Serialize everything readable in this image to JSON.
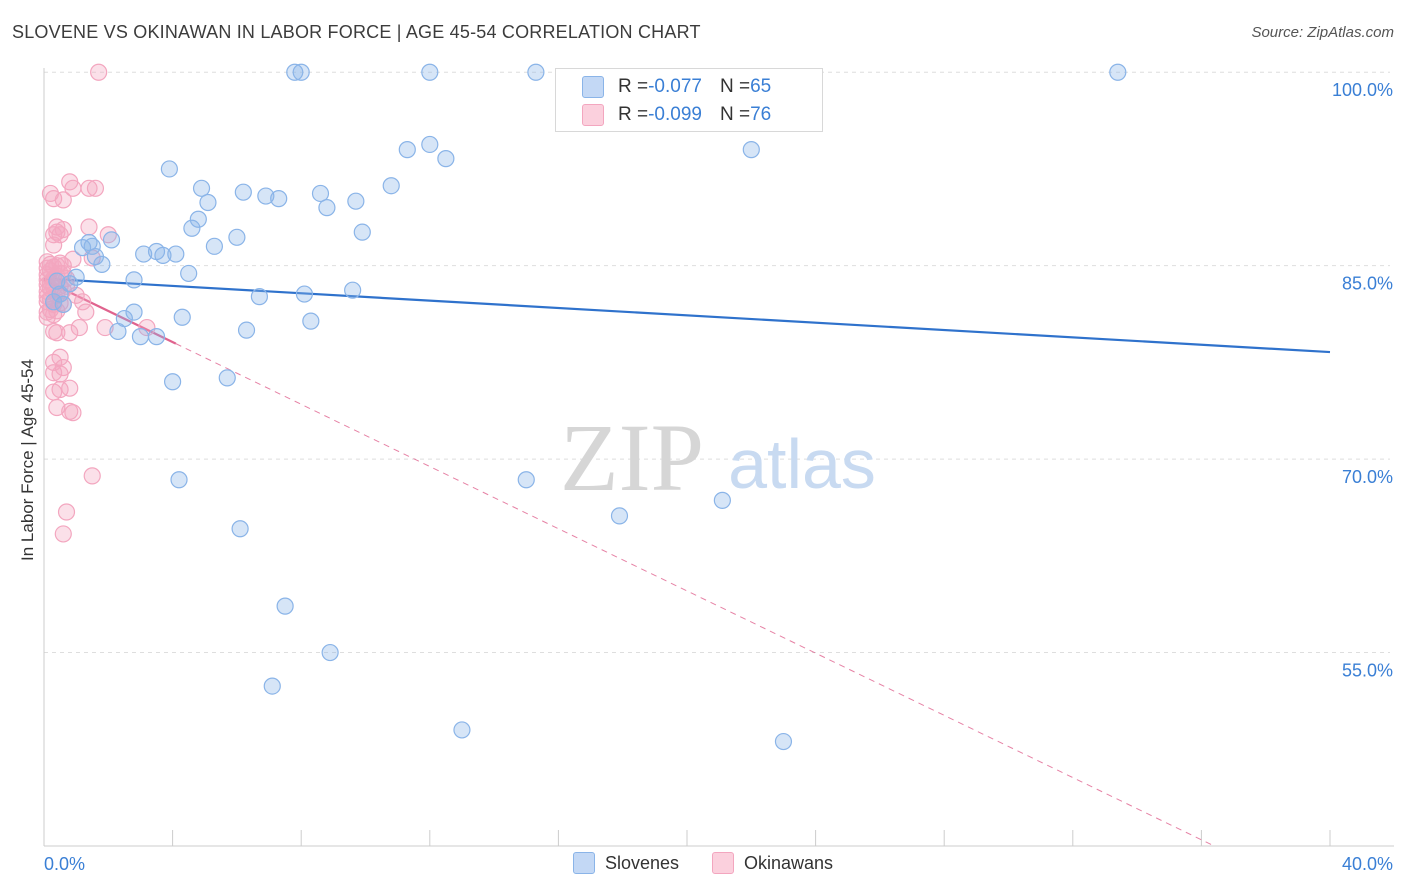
{
  "title": "SLOVENE VS OKINAWAN IN LABOR FORCE | AGE 45-54 CORRELATION CHART",
  "source": "Source: ZipAtlas.com",
  "watermark": {
    "zip": "ZIP",
    "atlas": "atlas"
  },
  "legend_box": {
    "rows": [
      {
        "r_label": "R = ",
        "r_value": "-0.077",
        "n_label": "N = ",
        "n_value": "65"
      },
      {
        "r_label": "R = ",
        "r_value": "-0.099",
        "n_label": "N = ",
        "n_value": "76"
      }
    ]
  },
  "chart_data": {
    "type": "scatter",
    "title": "SLOVENE VS OKINAWAN IN LABOR FORCE | AGE 45-54 CORRELATION CHART",
    "xlabel": "",
    "ylabel": "In Labor Force | Age 45-54",
    "xlim": [
      0,
      40
    ],
    "ylim": [
      40,
      102.5
    ],
    "x_tick_labels": [
      "0.0%",
      "40.0%"
    ],
    "y_ticks": [
      55,
      70,
      85,
      100
    ],
    "y_tick_labels": [
      "55.0%",
      "70.0%",
      "85.0%",
      "100.0%"
    ],
    "grid": true,
    "legend_position": "bottom",
    "colors": {
      "slovenes": "#8ab4e8",
      "slovenes_line": "#2f72cc",
      "okinawans": "#f3a6bf",
      "okinawans_line": "#e0638e",
      "axis_text": "#3a7fd5"
    },
    "series": [
      {
        "name": "Slovenes",
        "r": -0.077,
        "n": 65,
        "trend": {
          "x": [
            0,
            40
          ],
          "y": [
            84.0,
            78.3
          ]
        },
        "points": [
          [
            0.3,
            82.2
          ],
          [
            0.4,
            83.8
          ],
          [
            0.5,
            82.8
          ],
          [
            0.6,
            82.0
          ],
          [
            0.8,
            83.6
          ],
          [
            1.0,
            84.1
          ],
          [
            1.2,
            86.4
          ],
          [
            1.4,
            86.8
          ],
          [
            1.5,
            86.5
          ],
          [
            1.6,
            85.7
          ],
          [
            1.8,
            85.1
          ],
          [
            2.1,
            87.0
          ],
          [
            2.8,
            83.9
          ],
          [
            2.8,
            81.4
          ],
          [
            2.3,
            79.9
          ],
          [
            2.5,
            80.9
          ],
          [
            3.0,
            79.5
          ],
          [
            3.1,
            85.9
          ],
          [
            3.5,
            79.5
          ],
          [
            3.5,
            86.1
          ],
          [
            3.7,
            85.8
          ],
          [
            3.9,
            92.5
          ],
          [
            4.0,
            76.0
          ],
          [
            4.1,
            85.9
          ],
          [
            4.2,
            68.4
          ],
          [
            4.3,
            81.0
          ],
          [
            4.5,
            84.4
          ],
          [
            4.6,
            87.9
          ],
          [
            4.8,
            88.6
          ],
          [
            4.9,
            91.0
          ],
          [
            5.1,
            89.9
          ],
          [
            5.3,
            86.5
          ],
          [
            5.7,
            76.3
          ],
          [
            6.0,
            87.2
          ],
          [
            6.1,
            64.6
          ],
          [
            6.2,
            90.7
          ],
          [
            6.3,
            80.0
          ],
          [
            6.7,
            82.6
          ],
          [
            6.9,
            90.4
          ],
          [
            7.1,
            52.4
          ],
          [
            7.3,
            90.2
          ],
          [
            7.5,
            58.6
          ],
          [
            7.8,
            100.0
          ],
          [
            8.0,
            100.0
          ],
          [
            8.1,
            82.8
          ],
          [
            8.3,
            80.7
          ],
          [
            8.6,
            90.6
          ],
          [
            8.8,
            89.5
          ],
          [
            8.9,
            55.0
          ],
          [
            9.6,
            83.1
          ],
          [
            9.7,
            90.0
          ],
          [
            9.9,
            87.6
          ],
          [
            10.8,
            91.2
          ],
          [
            11.3,
            94.0
          ],
          [
            12.0,
            94.4
          ],
          [
            12.0,
            100.0
          ],
          [
            12.5,
            93.3
          ],
          [
            13.0,
            49.0
          ],
          [
            15.0,
            68.4
          ],
          [
            15.3,
            100.0
          ],
          [
            17.9,
            65.6
          ],
          [
            21.1,
            66.8
          ],
          [
            22.0,
            94.0
          ],
          [
            23.0,
            48.1
          ],
          [
            33.4,
            100.0
          ]
        ]
      },
      {
        "name": "Okinawans",
        "r": -0.099,
        "n": 76,
        "trend": {
          "x": [
            0,
            36.4
          ],
          "y": [
            83.9,
            40.0
          ]
        },
        "trend_solid_until_x": 4.1,
        "points": [
          [
            0.1,
            84.8
          ],
          [
            0.1,
            83.9
          ],
          [
            0.1,
            83.0
          ],
          [
            0.1,
            82.2
          ],
          [
            0.1,
            81.4
          ],
          [
            0.1,
            84.3
          ],
          [
            0.1,
            83.5
          ],
          [
            0.1,
            82.6
          ],
          [
            0.1,
            81.0
          ],
          [
            0.1,
            85.3
          ],
          [
            0.2,
            84.6
          ],
          [
            0.2,
            83.2
          ],
          [
            0.2,
            82.4
          ],
          [
            0.2,
            81.6
          ],
          [
            0.2,
            85.1
          ],
          [
            0.2,
            83.7
          ],
          [
            0.2,
            90.6
          ],
          [
            0.3,
            90.2
          ],
          [
            0.3,
            87.4
          ],
          [
            0.3,
            86.6
          ],
          [
            0.3,
            84.9
          ],
          [
            0.3,
            84.0
          ],
          [
            0.3,
            83.3
          ],
          [
            0.3,
            82.0
          ],
          [
            0.3,
            81.2
          ],
          [
            0.3,
            79.9
          ],
          [
            0.3,
            75.2
          ],
          [
            0.3,
            76.7
          ],
          [
            0.3,
            77.5
          ],
          [
            0.4,
            88.0
          ],
          [
            0.4,
            87.6
          ],
          [
            0.4,
            85.0
          ],
          [
            0.4,
            84.2
          ],
          [
            0.4,
            82.7
          ],
          [
            0.4,
            81.5
          ],
          [
            0.4,
            74.0
          ],
          [
            0.4,
            79.8
          ],
          [
            0.5,
            87.4
          ],
          [
            0.5,
            85.2
          ],
          [
            0.5,
            84.4
          ],
          [
            0.5,
            83.4
          ],
          [
            0.5,
            82.1
          ],
          [
            0.5,
            77.9
          ],
          [
            0.5,
            76.6
          ],
          [
            0.5,
            75.4
          ],
          [
            0.6,
            90.1
          ],
          [
            0.6,
            87.8
          ],
          [
            0.6,
            85.0
          ],
          [
            0.6,
            84.4
          ],
          [
            0.6,
            83.1
          ],
          [
            0.6,
            82.0
          ],
          [
            0.6,
            64.2
          ],
          [
            0.6,
            77.1
          ],
          [
            0.7,
            65.9
          ],
          [
            0.7,
            84.0
          ],
          [
            0.7,
            83.4
          ],
          [
            0.8,
            91.5
          ],
          [
            0.8,
            79.8
          ],
          [
            0.8,
            75.5
          ],
          [
            0.8,
            73.7
          ],
          [
            0.9,
            91.0
          ],
          [
            0.9,
            85.5
          ],
          [
            0.9,
            73.6
          ],
          [
            1.0,
            82.7
          ],
          [
            1.1,
            80.2
          ],
          [
            1.2,
            82.2
          ],
          [
            1.3,
            81.4
          ],
          [
            1.4,
            91.0
          ],
          [
            1.4,
            88.0
          ],
          [
            1.5,
            85.6
          ],
          [
            1.5,
            68.7
          ],
          [
            1.6,
            91.0
          ],
          [
            1.7,
            100.0
          ],
          [
            1.9,
            80.2
          ],
          [
            2.0,
            87.4
          ],
          [
            3.2,
            80.2
          ]
        ]
      }
    ]
  }
}
